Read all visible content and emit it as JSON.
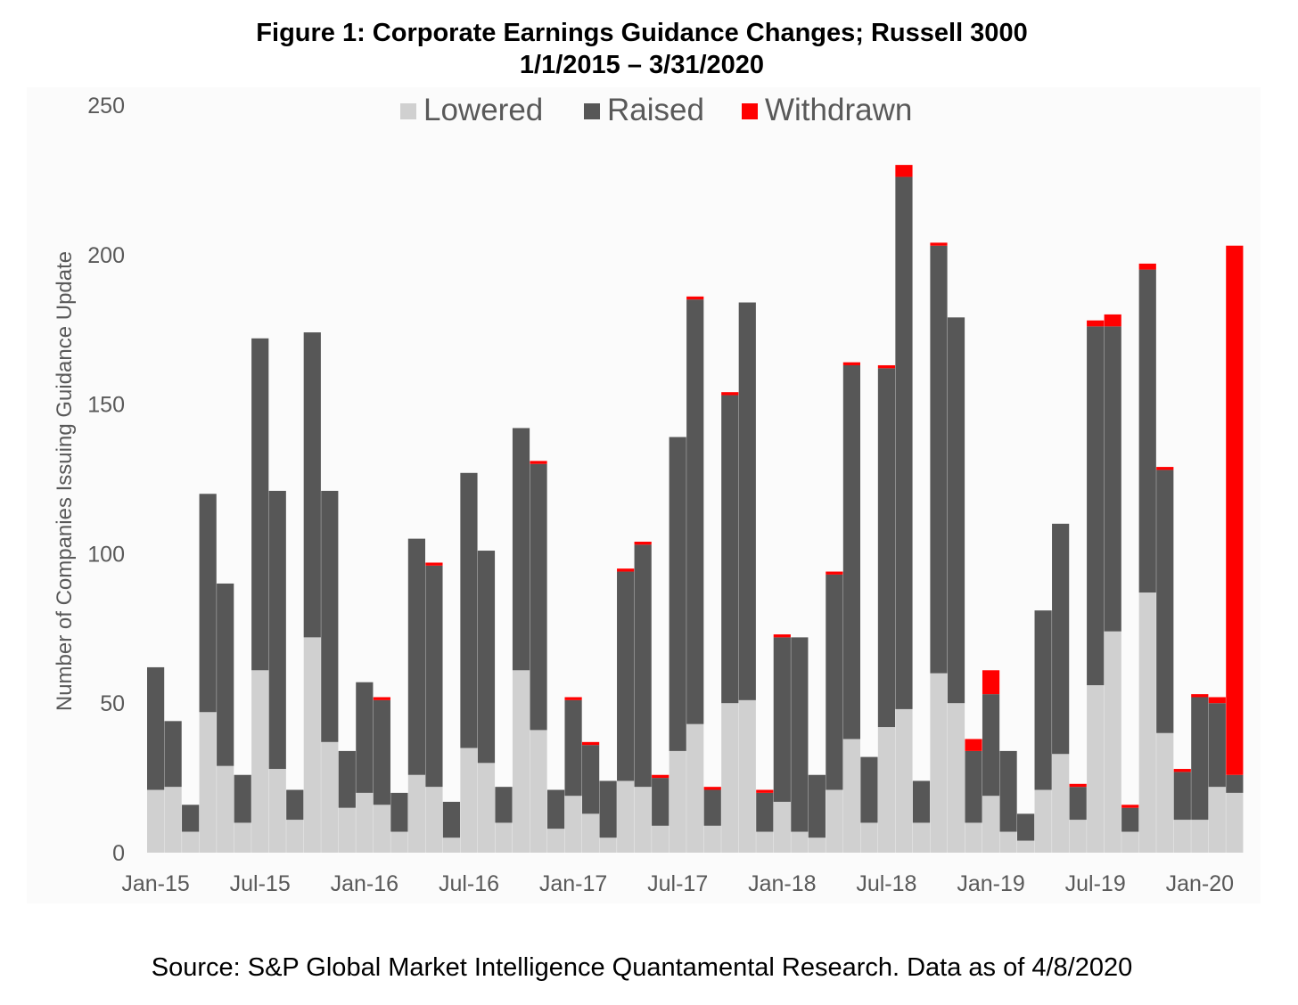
{
  "chart_data": {
    "type": "bar",
    "stacked": true,
    "title": "Figure 1: Corporate Earnings Guidance Changes; Russell 3000",
    "subtitle": "1/1/2015 – 3/31/2020",
    "ylabel": "Number of Companies Issuing Guidance Update",
    "xlabel": "",
    "ylim": [
      0,
      250
    ],
    "yticks": [
      0,
      50,
      100,
      150,
      200,
      250
    ],
    "grid": false,
    "legend_position": "top-center",
    "xtick_labels": [
      "Jan-15",
      "Jul-15",
      "Jan-16",
      "Jul-16",
      "Jan-17",
      "Jul-17",
      "Jan-18",
      "Jul-18",
      "Jan-19",
      "Jul-19",
      "Jan-20"
    ],
    "colors": {
      "Lowered": "#d0d0d0",
      "Raised": "#575757",
      "Withdrawn": "#ff0000"
    },
    "categories": [
      "Jan-15",
      "Feb-15",
      "Mar-15",
      "Apr-15",
      "May-15",
      "Jun-15",
      "Jul-15",
      "Aug-15",
      "Sep-15",
      "Oct-15",
      "Nov-15",
      "Dec-15",
      "Jan-16",
      "Feb-16",
      "Mar-16",
      "Apr-16",
      "May-16",
      "Jun-16",
      "Jul-16",
      "Aug-16",
      "Sep-16",
      "Oct-16",
      "Nov-16",
      "Dec-16",
      "Jan-17",
      "Feb-17",
      "Mar-17",
      "Apr-17",
      "May-17",
      "Jun-17",
      "Jul-17",
      "Aug-17",
      "Sep-17",
      "Oct-17",
      "Nov-17",
      "Dec-17",
      "Jan-18",
      "Feb-18",
      "Mar-18",
      "Apr-18",
      "May-18",
      "Jun-18",
      "Jul-18",
      "Aug-18",
      "Sep-18",
      "Oct-18",
      "Nov-18",
      "Dec-18",
      "Jan-19",
      "Feb-19",
      "Mar-19",
      "Apr-19",
      "May-19",
      "Jun-19",
      "Jul-19",
      "Aug-19",
      "Sep-19",
      "Oct-19",
      "Nov-19",
      "Dec-19",
      "Jan-20",
      "Feb-20",
      "Mar-20"
    ],
    "series": [
      {
        "name": "Lowered",
        "values": [
          21,
          22,
          7,
          47,
          29,
          10,
          61,
          28,
          11,
          72,
          37,
          15,
          20,
          16,
          7,
          26,
          22,
          5,
          35,
          30,
          10,
          61,
          41,
          8,
          19,
          13,
          5,
          24,
          22,
          9,
          34,
          43,
          9,
          50,
          51,
          7,
          17,
          7,
          5,
          21,
          38,
          10,
          42,
          48,
          10,
          60,
          50,
          10,
          19,
          7,
          4,
          21,
          33,
          11,
          56,
          74,
          7,
          87,
          40,
          11,
          11,
          22,
          20
        ]
      },
      {
        "name": "Raised",
        "values": [
          41,
          22,
          9,
          73,
          61,
          16,
          111,
          93,
          10,
          102,
          84,
          19,
          37,
          35,
          13,
          79,
          74,
          12,
          92,
          71,
          12,
          81,
          89,
          13,
          32,
          23,
          19,
          70,
          81,
          16,
          105,
          142,
          12,
          103,
          133,
          13,
          55,
          65,
          21,
          72,
          125,
          22,
          120,
          178,
          14,
          143,
          129,
          24,
          34,
          27,
          9,
          60,
          77,
          11,
          120,
          102,
          8,
          108,
          88,
          16,
          41,
          28,
          6
        ]
      },
      {
        "name": "Withdrawn",
        "values": [
          0,
          0,
          0,
          0,
          0,
          0,
          0,
          0,
          0,
          0,
          0,
          0,
          0,
          1,
          0,
          0,
          1,
          0,
          0,
          0,
          0,
          0,
          1,
          0,
          1,
          1,
          0,
          1,
          1,
          1,
          0,
          1,
          1,
          1,
          0,
          1,
          1,
          0,
          0,
          1,
          1,
          0,
          1,
          4,
          0,
          1,
          0,
          4,
          8,
          0,
          0,
          0,
          0,
          1,
          2,
          4,
          1,
          2,
          1,
          1,
          1,
          2,
          177
        ]
      }
    ]
  },
  "source_text": "Source: S&P Global Market Intelligence Quantamental Research. Data as of 4/8/2020"
}
